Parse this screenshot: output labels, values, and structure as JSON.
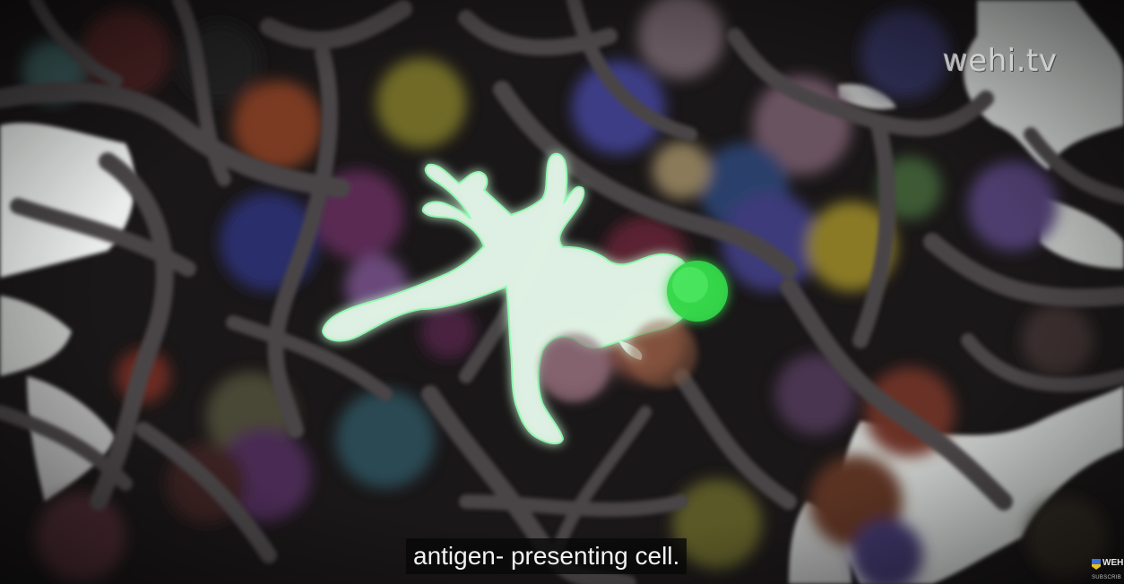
{
  "video": {
    "watermark": "wehi.tv",
    "subtitle": "antigen- presenting cell.",
    "channel_badge": {
      "name": "WEH",
      "action": "SUBSCRIB"
    }
  },
  "colors": {
    "background": "#1a1718",
    "fibers": "#4a4546",
    "reticular_cells": "#e9ecea",
    "dendritic_cell": "#dff2e4",
    "dendritic_glow": "#8fffb0",
    "highlighted_t_cell": "#34d74a",
    "caption_bg": "#080808",
    "caption_text": "#f2f2f2"
  },
  "scene_elements": [
    "lymphocyte-spheres",
    "reticular-fiber-network",
    "fibroblastic-reticular-cells",
    "dendritic-cell",
    "highlighted-t-cell"
  ]
}
